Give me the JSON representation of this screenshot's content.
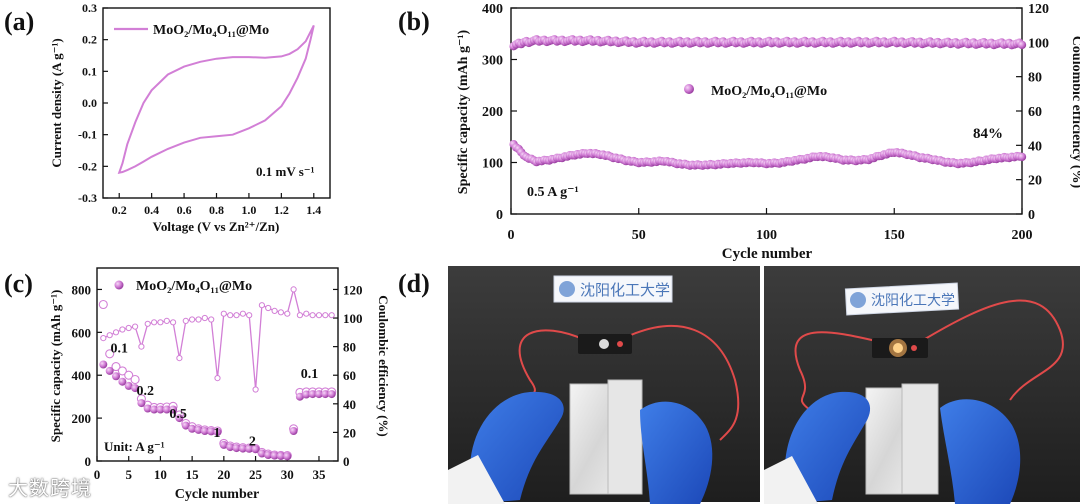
{
  "chart_data": [
    {
      "id": "a",
      "panel_label": "(a)",
      "type": "line",
      "title": "",
      "xlabel": "Voltage (V vs Zn²⁺/Zn)",
      "ylabel": "Current density (A g⁻¹)",
      "xlim": [
        0.1,
        1.5
      ],
      "ylim": [
        -0.3,
        0.3
      ],
      "xticks": [
        "0.2",
        "0.4",
        "0.6",
        "0.8",
        "1.0",
        "1.2",
        "1.4"
      ],
      "yticks": [
        "-0.3",
        "-0.2",
        "-0.1",
        "0.0",
        "0.1",
        "0.2",
        "0.3"
      ],
      "legend": "MoO₂/Mo₄O₁₁@Mo",
      "annotation": "0.1 mV s⁻¹",
      "color": "#d27fd6",
      "series": [
        {
          "name": "MoO₂/Mo₄O₁₁@Mo",
          "x": [
            0.2,
            0.22,
            0.25,
            0.3,
            0.35,
            0.4,
            0.5,
            0.6,
            0.7,
            0.8,
            0.9,
            1.0,
            1.1,
            1.2,
            1.25,
            1.3,
            1.35,
            1.4,
            1.38,
            1.35,
            1.3,
            1.25,
            1.2,
            1.1,
            1.0,
            0.9,
            0.8,
            0.7,
            0.6,
            0.5,
            0.4,
            0.35,
            0.3,
            0.25,
            0.22,
            0.2
          ],
          "y": [
            -0.22,
            -0.19,
            -0.13,
            -0.06,
            0.0,
            0.04,
            0.09,
            0.115,
            0.13,
            0.14,
            0.145,
            0.145,
            0.143,
            0.147,
            0.155,
            0.17,
            0.195,
            0.245,
            0.2,
            0.14,
            0.08,
            0.03,
            -0.01,
            -0.055,
            -0.08,
            -0.1,
            -0.105,
            -0.11,
            -0.125,
            -0.145,
            -0.17,
            -0.185,
            -0.2,
            -0.212,
            -0.218,
            -0.22
          ]
        }
      ]
    },
    {
      "id": "b",
      "panel_label": "(b)",
      "type": "scatter",
      "title": "",
      "xlabel": "Cycle number",
      "ylabel": "Specific capacity (mAh g⁻¹)",
      "ylabel_right": "Coulombic efficiency (%)",
      "xlim": [
        0,
        200
      ],
      "ylim": [
        0,
        400
      ],
      "ylim_right": [
        0,
        120
      ],
      "xticks": [
        "0",
        "50",
        "100",
        "150",
        "200"
      ],
      "yticks": [
        "0",
        "100",
        "200",
        "300",
        "400"
      ],
      "yticks_right": [
        "0",
        "20",
        "40",
        "60",
        "80",
        "100",
        "120"
      ],
      "legend": "MoO₂/Mo₄O₁₁@Mo",
      "annotation_current": "0.5 A g⁻¹",
      "annotation_retention": "84%",
      "color": "#d27fd6",
      "capacity": {
        "x": [
          1,
          3,
          6,
          10,
          15,
          20,
          25,
          30,
          35,
          40,
          45,
          50,
          55,
          60,
          65,
          70,
          75,
          80,
          85,
          90,
          95,
          100,
          105,
          110,
          115,
          120,
          125,
          130,
          135,
          140,
          145,
          150,
          155,
          160,
          165,
          170,
          175,
          180,
          185,
          190,
          195,
          200
        ],
        "y": [
          135,
          125,
          110,
          102,
          105,
          110,
          115,
          118,
          116,
          110,
          104,
          100,
          101,
          103,
          98,
          95,
          95,
          96,
          98,
          99,
          100,
          98,
          99,
          103,
          107,
          112,
          110,
          105,
          104,
          106,
          114,
          120,
          116,
          110,
          106,
          101,
          98,
          100,
          104,
          108,
          110,
          112
        ]
      },
      "efficiency": {
        "x": [
          1,
          5,
          10,
          20,
          30,
          50,
          100,
          150,
          200
        ],
        "y": [
          98,
          100,
          101,
          101,
          101,
          100,
          100,
          100,
          99
        ]
      }
    },
    {
      "id": "c",
      "panel_label": "(c)",
      "type": "scatter",
      "title": "",
      "xlabel": "Cycle number",
      "ylabel": "Specific capacity (mAh g⁻¹)",
      "ylabel_right": "Coulombic efficiency (%)",
      "xlim": [
        0,
        38
      ],
      "ylim": [
        0,
        900
      ],
      "ylim_right": [
        0,
        135
      ],
      "xticks": [
        "0",
        "5",
        "10",
        "15",
        "20",
        "25",
        "30",
        "35"
      ],
      "yticks": [
        "0",
        "200",
        "400",
        "600",
        "800"
      ],
      "yticks_right": [
        "0",
        "20",
        "40",
        "60",
        "80",
        "100",
        "120"
      ],
      "legend": "MoO₂/Mo₄O₁₁@Mo",
      "annotation_unit": "Unit: A g⁻¹",
      "rate_labels": [
        {
          "text": "0.1",
          "x": 3.5,
          "y": 530
        },
        {
          "text": "0.2",
          "x": 7.6,
          "y": 330
        },
        {
          "text": "0.5",
          "x": 12.8,
          "y": 225
        },
        {
          "text": "1",
          "x": 18.9,
          "y": 135
        },
        {
          "text": "2",
          "x": 24.5,
          "y": 95
        },
        {
          "text": "0.1",
          "x": 33.5,
          "y": 410
        }
      ],
      "color": "#d27fd6",
      "charge": {
        "x": [
          1,
          2,
          3,
          4,
          5,
          6,
          7,
          8,
          9,
          10,
          11,
          12,
          13,
          14,
          15,
          16,
          17,
          18,
          19,
          20,
          21,
          22,
          23,
          24,
          25,
          26,
          27,
          28,
          29,
          30,
          31,
          32,
          33,
          34,
          35,
          36,
          37
        ],
        "y": [
          450,
          420,
          395,
          370,
          350,
          340,
          270,
          245,
          240,
          240,
          240,
          240,
          200,
          165,
          150,
          145,
          140,
          138,
          135,
          75,
          65,
          60,
          58,
          57,
          55,
          35,
          28,
          25,
          24,
          22,
          140,
          300,
          310,
          312,
          312,
          312,
          312
        ]
      },
      "discharge": {
        "x": [
          1,
          2,
          3,
          4,
          5,
          6,
          7,
          8,
          9,
          10,
          11,
          12,
          13,
          14,
          15,
          16,
          17,
          18,
          19,
          20,
          21,
          22,
          23,
          24,
          25,
          26,
          27,
          28,
          29,
          30,
          31,
          32,
          33,
          34,
          35,
          36,
          37
        ],
        "y": [
          730,
          500,
          440,
          420,
          400,
          380,
          290,
          260,
          250,
          250,
          252,
          255,
          215,
          175,
          160,
          150,
          145,
          142,
          140,
          82,
          70,
          65,
          62,
          60,
          58,
          40,
          32,
          28,
          26,
          25,
          150,
          320,
          322,
          322,
          322,
          322,
          322
        ]
      },
      "efficiency": {
        "x": [
          1,
          2,
          3,
          4,
          5,
          6,
          7,
          8,
          9,
          10,
          11,
          12,
          13,
          14,
          15,
          16,
          17,
          18,
          19,
          20,
          21,
          22,
          23,
          24,
          25,
          26,
          27,
          28,
          29,
          30,
          31,
          32,
          33,
          34,
          35,
          36,
          37
        ],
        "y": [
          86,
          88,
          90,
          92,
          93,
          94,
          80,
          96,
          97,
          97,
          98,
          97,
          72,
          98,
          99,
          99,
          100,
          99,
          58,
          103,
          102,
          102,
          103,
          102,
          50,
          109,
          107,
          105,
          104,
          103,
          120,
          102,
          103,
          102,
          102,
          102,
          102
        ]
      }
    }
  ],
  "panel_d_label": "(d)",
  "photo_sign_text": "沈阳化工大学",
  "watermark": "大数跨境"
}
